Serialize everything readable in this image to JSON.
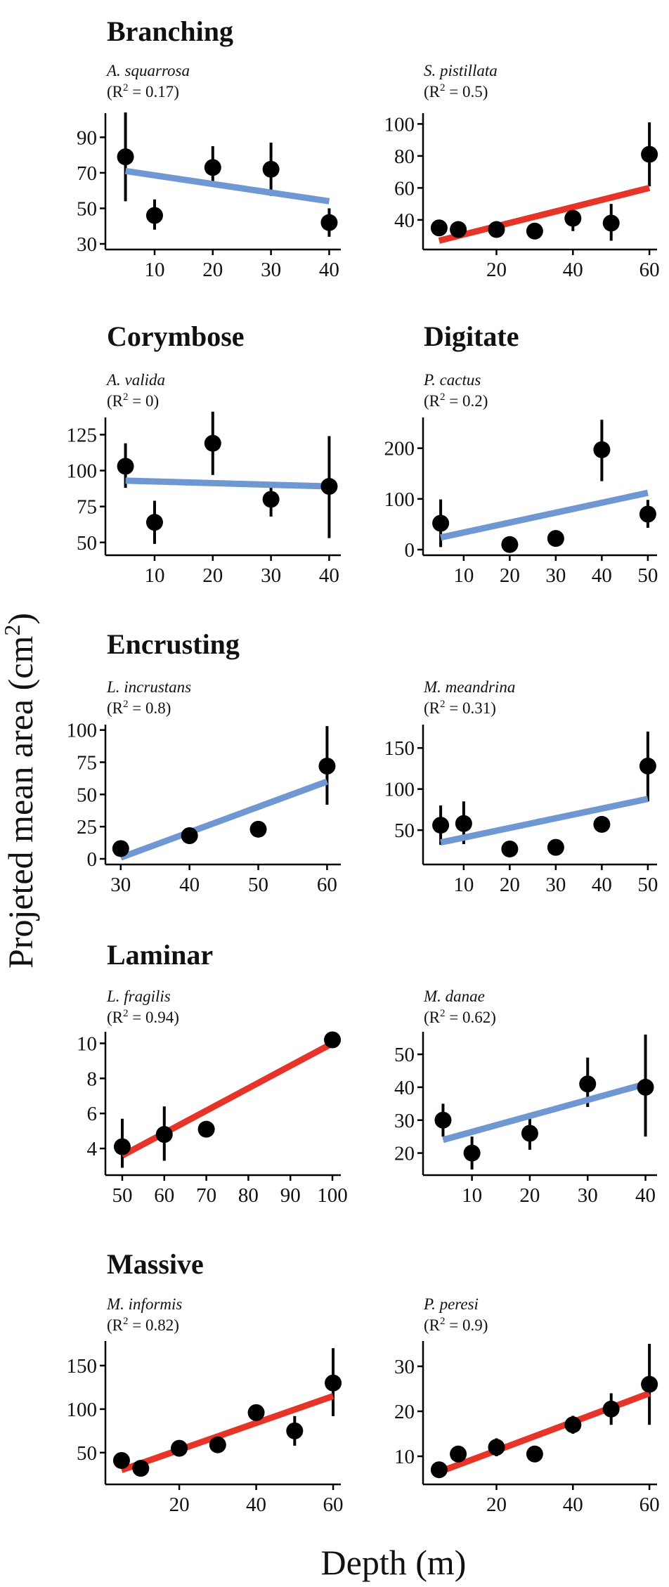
{
  "axis_labels": {
    "x": "Depth (m)",
    "y": "Projeted mean area (cm²)",
    "y_main": "Projeted mean area (cm",
    "y_sup": "2",
    "y_close": ")"
  },
  "colors": {
    "blue": "#6f97d2",
    "red": "#e63428",
    "point": "#000000"
  },
  "groups": [
    "Branching",
    "Corymbose",
    "Digitate",
    "Encrusting",
    "Laminar",
    "Massive"
  ],
  "chart_data": [
    {
      "type": "scatter",
      "group": "Branching",
      "species": "A. squarrosa",
      "r2_label": "(R",
      "r2_sup": "2",
      "r2_value": " = 0.17)",
      "r2": 0.17,
      "xlabel": "Depth (m)",
      "ylabel": "Projeted mean area (cm²)",
      "fit_color": "blue",
      "xlim": [
        3,
        42
      ],
      "xticks": [
        10,
        20,
        30,
        40
      ],
      "ylim": [
        30,
        102
      ],
      "yticks": [
        30,
        50,
        70,
        90
      ],
      "points": [
        {
          "x": 5,
          "y": 79,
          "lo": 54,
          "hi": 104
        },
        {
          "x": 10,
          "y": 46,
          "lo": 38,
          "hi": 55
        },
        {
          "x": 20,
          "y": 73,
          "lo": 64,
          "hi": 85
        },
        {
          "x": 30,
          "y": 72,
          "lo": 57,
          "hi": 87
        },
        {
          "x": 40,
          "y": 42,
          "lo": 34,
          "hi": 50
        }
      ],
      "fit": [
        {
          "x": 5,
          "y": 71
        },
        {
          "x": 40,
          "y": 54
        }
      ]
    },
    {
      "type": "scatter",
      "group": "Branching",
      "species": "S. pistillata",
      "r2_label": "(R",
      "r2_sup": "2",
      "r2_value": " = 0.5)",
      "r2": 0.5,
      "xlabel": "Depth (m)",
      "ylabel": "Projeted mean area (cm²)",
      "fit_color": "red",
      "xlim": [
        3,
        62
      ],
      "xticks": [
        20,
        40,
        60
      ],
      "ylim": [
        25,
        105
      ],
      "yticks": [
        40,
        60,
        80,
        100
      ],
      "points": [
        {
          "x": 5,
          "y": 35,
          "lo": 31,
          "hi": 38
        },
        {
          "x": 10,
          "y": 34,
          "lo": 31,
          "hi": 36
        },
        {
          "x": 20,
          "y": 34,
          "lo": 32,
          "hi": 36
        },
        {
          "x": 30,
          "y": 33,
          "lo": 31,
          "hi": 35
        },
        {
          "x": 40,
          "y": 41,
          "lo": 33,
          "hi": 47
        },
        {
          "x": 50,
          "y": 38,
          "lo": 27,
          "hi": 50
        },
        {
          "x": 60,
          "y": 81,
          "lo": 61,
          "hi": 101
        }
      ],
      "fit": [
        {
          "x": 5,
          "y": 27
        },
        {
          "x": 60,
          "y": 60
        }
      ]
    },
    {
      "type": "scatter",
      "group": "Corymbose",
      "species": "A. valida",
      "r2_label": "(R",
      "r2_sup": "2",
      "r2_value": " = 0)",
      "r2": 0,
      "xlabel": "Depth (m)",
      "ylabel": "Projeted mean area (cm²)",
      "fit_color": "blue",
      "xlim": [
        3,
        42
      ],
      "xticks": [
        10,
        20,
        30,
        40
      ],
      "ylim": [
        45,
        135
      ],
      "yticks": [
        50,
        75,
        100,
        125
      ],
      "points": [
        {
          "x": 5,
          "y": 103,
          "lo": 88,
          "hi": 119
        },
        {
          "x": 10,
          "y": 64,
          "lo": 49,
          "hi": 79
        },
        {
          "x": 20,
          "y": 119,
          "lo": 97,
          "hi": 141
        },
        {
          "x": 30,
          "y": 80,
          "lo": 68,
          "hi": 92
        },
        {
          "x": 40,
          "y": 89,
          "lo": 53,
          "hi": 124
        }
      ],
      "fit": [
        {
          "x": 5,
          "y": 93
        },
        {
          "x": 40,
          "y": 89
        }
      ]
    },
    {
      "type": "scatter",
      "group": "Digitate",
      "species": "P. cactus",
      "r2_label": "(R",
      "r2_sup": "2",
      "r2_value": " = 0.2)",
      "r2": 0.2,
      "xlabel": "Depth (m)",
      "ylabel": "Projeted mean area (cm²)",
      "fit_color": "blue",
      "xlim": [
        3,
        52
      ],
      "xticks": [
        10,
        20,
        30,
        40,
        50
      ],
      "ylim": [
        0,
        255
      ],
      "yticks": [
        0,
        100,
        200
      ],
      "points": [
        {
          "x": 5,
          "y": 52,
          "lo": 5,
          "hi": 99
        },
        {
          "x": 20,
          "y": 10,
          "lo": 5,
          "hi": 16
        },
        {
          "x": 30,
          "y": 22,
          "lo": 17,
          "hi": 27
        },
        {
          "x": 40,
          "y": 197,
          "lo": 135,
          "hi": 256
        },
        {
          "x": 50,
          "y": 70,
          "lo": 43,
          "hi": 98
        }
      ],
      "fit": [
        {
          "x": 5,
          "y": 24
        },
        {
          "x": 50,
          "y": 112
        }
      ]
    },
    {
      "type": "scatter",
      "group": "Encrusting",
      "species": "L. incrustans",
      "r2_label": "(R",
      "r2_sup": "2",
      "r2_value": " = 0.8)",
      "r2": 0.8,
      "xlabel": "Depth (m)",
      "ylabel": "Projeted mean area (cm²)",
      "fit_color": "blue",
      "xlim": [
        29,
        62
      ],
      "xticks": [
        30,
        40,
        50,
        60
      ],
      "ylim": [
        0,
        102
      ],
      "yticks": [
        0,
        25,
        50,
        75,
        100
      ],
      "points": [
        {
          "x": 30,
          "y": 8,
          "lo": 4,
          "hi": 12
        },
        {
          "x": 40,
          "y": 18,
          "lo": 14,
          "hi": 22
        },
        {
          "x": 50,
          "y": 23,
          "lo": 20,
          "hi": 27
        },
        {
          "x": 60,
          "y": 72,
          "lo": 42,
          "hi": 103
        }
      ],
      "fit": [
        {
          "x": 30,
          "y": 1
        },
        {
          "x": 60,
          "y": 60
        }
      ]
    },
    {
      "type": "scatter",
      "group": "Encrusting",
      "species": "M. meandrina",
      "r2_label": "(R",
      "r2_sup": "2",
      "r2_value": " = 0.31)",
      "r2": 0.31,
      "xlabel": "Depth (m)",
      "ylabel": "Projeted mean area (cm²)",
      "fit_color": "blue",
      "xlim": [
        3,
        52
      ],
      "xticks": [
        10,
        20,
        30,
        40,
        50
      ],
      "ylim": [
        15,
        175
      ],
      "yticks": [
        50,
        100,
        150
      ],
      "points": [
        {
          "x": 5,
          "y": 56,
          "lo": 32,
          "hi": 80
        },
        {
          "x": 10,
          "y": 58,
          "lo": 33,
          "hi": 85
        },
        {
          "x": 20,
          "y": 27,
          "lo": 22,
          "hi": 31
        },
        {
          "x": 30,
          "y": 29,
          "lo": 24,
          "hi": 33
        },
        {
          "x": 40,
          "y": 57,
          "lo": 51,
          "hi": 63
        },
        {
          "x": 50,
          "y": 128,
          "lo": 85,
          "hi": 170
        }
      ],
      "fit": [
        {
          "x": 5,
          "y": 35
        },
        {
          "x": 50,
          "y": 88
        }
      ]
    },
    {
      "type": "scatter",
      "group": "Laminar",
      "species": "L. fragilis",
      "r2_label": "(R",
      "r2_sup": "2",
      "r2_value": " = 0.94)",
      "r2": 0.94,
      "xlabel": "Depth (m)",
      "ylabel": "Projeted mean area (cm²)",
      "fit_color": "red",
      "xlim": [
        48,
        102
      ],
      "xticks": [
        50,
        60,
        70,
        80,
        90,
        100
      ],
      "ylim": [
        2.8,
        10.5
      ],
      "yticks": [
        4,
        6,
        8,
        10
      ],
      "points": [
        {
          "x": 50,
          "y": 4.1,
          "lo": 2.9,
          "hi": 5.7
        },
        {
          "x": 60,
          "y": 4.8,
          "lo": 3.3,
          "hi": 6.4
        },
        {
          "x": 70,
          "y": 5.1,
          "lo": 4.9,
          "hi": 5.3
        },
        {
          "x": 100,
          "y": 10.2,
          "lo": 10.0,
          "hi": 10.4
        }
      ],
      "fit": [
        {
          "x": 50,
          "y": 3.6
        },
        {
          "x": 100,
          "y": 10.0
        }
      ]
    },
    {
      "type": "scatter",
      "group": "Laminar",
      "species": "M. danae",
      "r2_label": "(R",
      "r2_sup": "2",
      "r2_value": " = 0.62)",
      "r2": 0.62,
      "xlabel": "Depth (m)",
      "ylabel": "Projeted mean area (cm²)",
      "fit_color": "blue",
      "xlim": [
        3,
        42
      ],
      "xticks": [
        10,
        20,
        30,
        40
      ],
      "ylim": [
        15,
        56
      ],
      "yticks": [
        20,
        30,
        40,
        50
      ],
      "points": [
        {
          "x": 5,
          "y": 30,
          "lo": 25,
          "hi": 35
        },
        {
          "x": 10,
          "y": 20,
          "lo": 15,
          "hi": 25
        },
        {
          "x": 20,
          "y": 26,
          "lo": 21,
          "hi": 31
        },
        {
          "x": 30,
          "y": 41,
          "lo": 34,
          "hi": 49
        },
        {
          "x": 40,
          "y": 40,
          "lo": 25,
          "hi": 56
        }
      ],
      "fit": [
        {
          "x": 5,
          "y": 24
        },
        {
          "x": 40,
          "y": 41
        }
      ]
    },
    {
      "type": "scatter",
      "group": "Massive",
      "species": "M. informis",
      "r2_label": "(R",
      "r2_sup": "2",
      "r2_value": " = 0.82)",
      "r2": 0.82,
      "xlabel": "Depth (m)",
      "ylabel": "Projeted mean area (cm²)",
      "fit_color": "red",
      "xlim": [
        3,
        62
      ],
      "xticks": [
        20,
        40,
        60
      ],
      "ylim": [
        20,
        175
      ],
      "yticks": [
        50,
        100,
        150
      ],
      "points": [
        {
          "x": 5,
          "y": 41,
          "lo": 36,
          "hi": 46
        },
        {
          "x": 10,
          "y": 32,
          "lo": 28,
          "hi": 36
        },
        {
          "x": 20,
          "y": 55,
          "lo": 50,
          "hi": 60
        },
        {
          "x": 30,
          "y": 59,
          "lo": 54,
          "hi": 64
        },
        {
          "x": 40,
          "y": 96,
          "lo": 88,
          "hi": 105
        },
        {
          "x": 50,
          "y": 75,
          "lo": 58,
          "hi": 92
        },
        {
          "x": 60,
          "y": 130,
          "lo": 92,
          "hi": 170
        }
      ],
      "fit": [
        {
          "x": 5,
          "y": 30
        },
        {
          "x": 60,
          "y": 115
        }
      ]
    },
    {
      "type": "scatter",
      "group": "Massive",
      "species": "P. peresi",
      "r2_label": "(R",
      "r2_sup": "2",
      "r2_value": " = 0.9)",
      "r2": 0.9,
      "xlabel": "Depth (m)",
      "ylabel": "Projeted mean area (cm²)",
      "fit_color": "red",
      "xlim": [
        3,
        62
      ],
      "xticks": [
        20,
        40,
        60
      ],
      "ylim": [
        5,
        35
      ],
      "yticks": [
        10,
        20,
        30
      ],
      "points": [
        {
          "x": 5,
          "y": 7,
          "lo": 6,
          "hi": 8
        },
        {
          "x": 10,
          "y": 10.5,
          "lo": 9,
          "hi": 12
        },
        {
          "x": 20,
          "y": 12,
          "lo": 10,
          "hi": 14
        },
        {
          "x": 30,
          "y": 10.5,
          "lo": 9.5,
          "hi": 11.5
        },
        {
          "x": 40,
          "y": 17,
          "lo": 15,
          "hi": 19
        },
        {
          "x": 50,
          "y": 20.5,
          "lo": 17,
          "hi": 24
        },
        {
          "x": 60,
          "y": 26,
          "lo": 17,
          "hi": 35
        }
      ],
      "fit": [
        {
          "x": 5,
          "y": 6.5
        },
        {
          "x": 60,
          "y": 24
        }
      ]
    }
  ]
}
